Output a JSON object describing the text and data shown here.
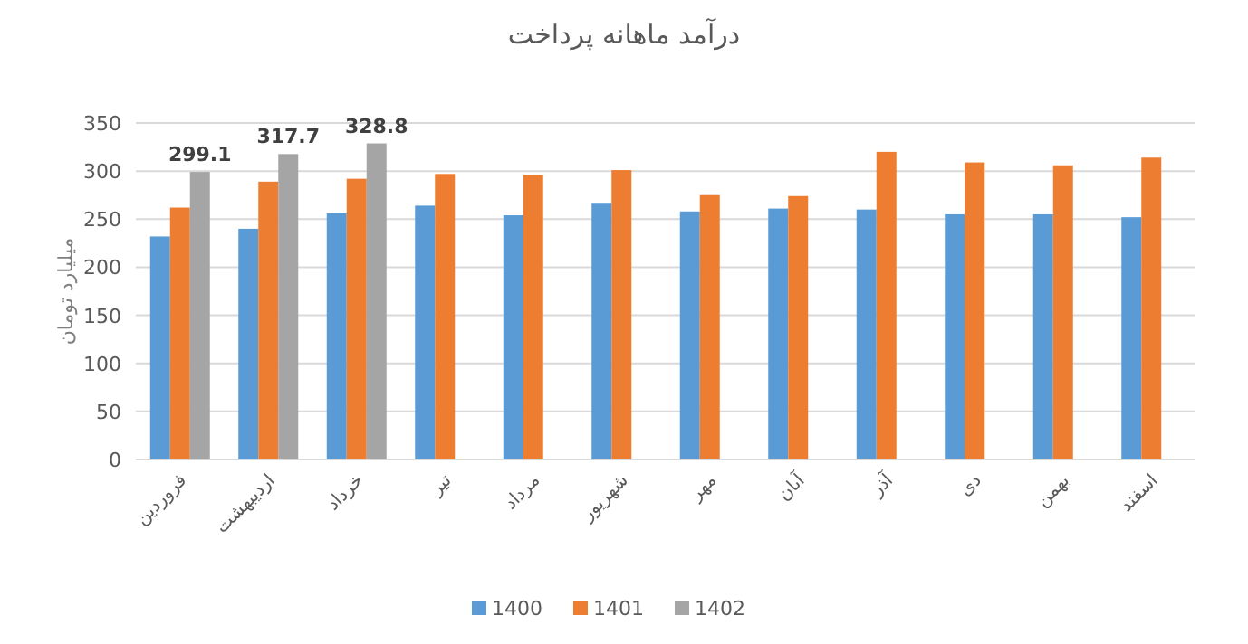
{
  "chart_data": {
    "type": "bar",
    "title": "درآمد ماهانه پرداخت",
    "ylabel": "میلیارد تومان",
    "categories": [
      "فروردین",
      "اردیبهشت",
      "خرداد",
      "تیر",
      "مرداد",
      "شهریور",
      "مهر",
      "آبان",
      "آذر",
      "دی",
      "بهمن",
      "اسفند"
    ],
    "series": [
      {
        "name": "1400",
        "color": "#5b9bd5",
        "values": [
          232,
          240,
          256,
          264,
          254,
          267,
          258,
          261,
          260,
          255,
          255,
          252
        ]
      },
      {
        "name": "1401",
        "color": "#ed7d31",
        "values": [
          262,
          289,
          292,
          297,
          296,
          301,
          275,
          274,
          320,
          309,
          306,
          314
        ]
      },
      {
        "name": "1402",
        "color": "#a5a5a5",
        "values": [
          299.1,
          317.7,
          328.8,
          null,
          null,
          null,
          null,
          null,
          null,
          null,
          null,
          null
        ],
        "value_labels": [
          "299.1",
          "317.7",
          "328.8",
          null,
          null,
          null,
          null,
          null,
          null,
          null,
          null,
          null
        ]
      }
    ],
    "ylim": [
      0,
      350
    ],
    "yticks": [
      0,
      50,
      100,
      150,
      200,
      250,
      300,
      350
    ],
    "grid": "y",
    "legend": "bottom"
  }
}
